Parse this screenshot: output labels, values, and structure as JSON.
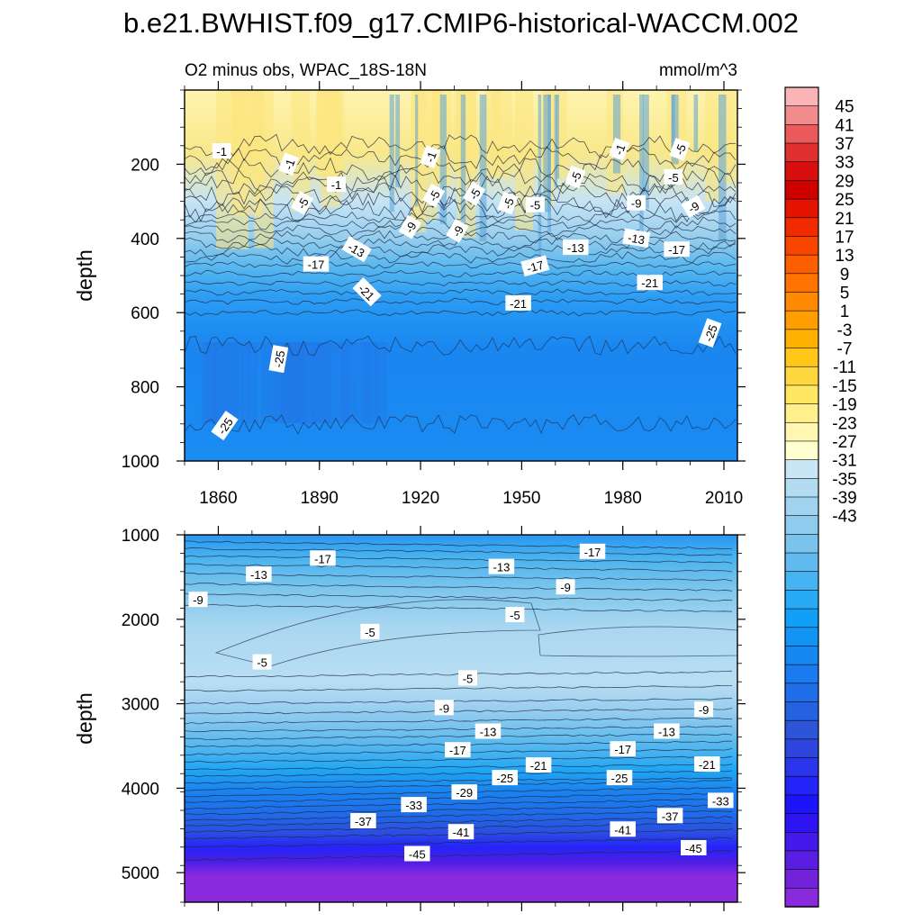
{
  "chart_data": [
    {
      "type": "heatmap",
      "title": "b.e21.BWHIST.f09_g17.CMIP6-historical-WACCM.002",
      "subtitle": "O2 minus obs, WPAC_18S-18N",
      "units_label": "mmol/m^3",
      "ylabel": "depth",
      "x_range": [
        1850,
        2014
      ],
      "ylim": [
        1000,
        0
      ],
      "x_ticks": [
        1860,
        1890,
        1920,
        1950,
        1980,
        2010
      ],
      "y_ticks": [
        200,
        400,
        600,
        800,
        1000
      ],
      "contour_labels": [
        {
          "value": "-1",
          "x": 1861,
          "y": 165,
          "rot": 0
        },
        {
          "value": "-1",
          "x": 1881,
          "y": 200,
          "rot": -70
        },
        {
          "value": "-1",
          "x": 1895,
          "y": 255,
          "rot": 0
        },
        {
          "value": "-1",
          "x": 1923,
          "y": 180,
          "rot": -70
        },
        {
          "value": "-1",
          "x": 1979,
          "y": 160,
          "rot": -70
        },
        {
          "value": "-5",
          "x": 1997,
          "y": 160,
          "rot": -70
        },
        {
          "value": "-5",
          "x": 1885,
          "y": 305,
          "rot": -60
        },
        {
          "value": "-5",
          "x": 1924,
          "y": 285,
          "rot": -60
        },
        {
          "value": "-5",
          "x": 1936,
          "y": 280,
          "rot": -60
        },
        {
          "value": "-5",
          "x": 1946,
          "y": 305,
          "rot": -70
        },
        {
          "value": "-5",
          "x": 1954,
          "y": 310,
          "rot": 0
        },
        {
          "value": "-5",
          "x": 1966,
          "y": 235,
          "rot": -70
        },
        {
          "value": "-5",
          "x": 1995,
          "y": 235,
          "rot": 0
        },
        {
          "value": "-9",
          "x": 1984,
          "y": 305,
          "rot": 0
        },
        {
          "value": "-9",
          "x": 2001,
          "y": 315,
          "rot": -30
        },
        {
          "value": "-9",
          "x": 1917,
          "y": 370,
          "rot": -60
        },
        {
          "value": "-9",
          "x": 1931,
          "y": 380,
          "rot": -60
        },
        {
          "value": "-13",
          "x": 1901,
          "y": 430,
          "rot": 30
        },
        {
          "value": "-13",
          "x": 1966,
          "y": 425,
          "rot": 0
        },
        {
          "value": "-13",
          "x": 1984,
          "y": 400,
          "rot": 10
        },
        {
          "value": "-17",
          "x": 1889,
          "y": 470,
          "rot": 0
        },
        {
          "value": "-17",
          "x": 1954,
          "y": 475,
          "rot": -15
        },
        {
          "value": "-17",
          "x": 1996,
          "y": 430,
          "rot": 0
        },
        {
          "value": "-21",
          "x": 1904,
          "y": 545,
          "rot": 45
        },
        {
          "value": "-21",
          "x": 1949,
          "y": 575,
          "rot": 0
        },
        {
          "value": "-21",
          "x": 1988,
          "y": 520,
          "rot": 0
        },
        {
          "value": "-25",
          "x": 1878,
          "y": 725,
          "rot": -80
        },
        {
          "value": "-25",
          "x": 1862,
          "y": 905,
          "rot": -55
        },
        {
          "value": "-25",
          "x": 2006,
          "y": 655,
          "rot": -70
        }
      ]
    },
    {
      "type": "heatmap",
      "ylabel": "depth",
      "x_range": [
        1850,
        2014
      ],
      "ylim": [
        5350,
        1000
      ],
      "y_ticks": [
        1000,
        2000,
        3000,
        4000,
        5000
      ],
      "contour_labels": [
        {
          "value": "-17",
          "x": 1891,
          "y": 1280,
          "rot": 0
        },
        {
          "value": "-13",
          "x": 1872,
          "y": 1470,
          "rot": 0
        },
        {
          "value": "-9",
          "x": 1854,
          "y": 1770,
          "rot": 0
        },
        {
          "value": "-17",
          "x": 1971,
          "y": 1200,
          "rot": 0
        },
        {
          "value": "-13",
          "x": 1944,
          "y": 1380,
          "rot": 0
        },
        {
          "value": "-9",
          "x": 1963,
          "y": 1620,
          "rot": 0
        },
        {
          "value": "-5",
          "x": 1948,
          "y": 1950,
          "rot": 0
        },
        {
          "value": "-5",
          "x": 1905,
          "y": 2150,
          "rot": 0
        },
        {
          "value": "-5",
          "x": 1873,
          "y": 2510,
          "rot": 0
        },
        {
          "value": "-5",
          "x": 1934,
          "y": 2700,
          "rot": 0
        },
        {
          "value": "-9",
          "x": 1927,
          "y": 3050,
          "rot": 0
        },
        {
          "value": "-9",
          "x": 2004,
          "y": 3070,
          "rot": 0
        },
        {
          "value": "-13",
          "x": 1940,
          "y": 3330,
          "rot": 0
        },
        {
          "value": "-13",
          "x": 1993,
          "y": 3330,
          "rot": 0
        },
        {
          "value": "-17",
          "x": 1931,
          "y": 3550,
          "rot": 0
        },
        {
          "value": "-17",
          "x": 1980,
          "y": 3540,
          "rot": 0
        },
        {
          "value": "-21",
          "x": 1955,
          "y": 3730,
          "rot": 0
        },
        {
          "value": "-21",
          "x": 2005,
          "y": 3720,
          "rot": 0
        },
        {
          "value": "-25",
          "x": 1945,
          "y": 3880,
          "rot": 0
        },
        {
          "value": "-25",
          "x": 1979,
          "y": 3880,
          "rot": 0
        },
        {
          "value": "-29",
          "x": 1933,
          "y": 4050,
          "rot": 0
        },
        {
          "value": "-33",
          "x": 1918,
          "y": 4200,
          "rot": 0
        },
        {
          "value": "-33",
          "x": 2009,
          "y": 4150,
          "rot": 0
        },
        {
          "value": "-37",
          "x": 1903,
          "y": 4390,
          "rot": 0
        },
        {
          "value": "-37",
          "x": 1994,
          "y": 4330,
          "rot": 0
        },
        {
          "value": "-41",
          "x": 1932,
          "y": 4520,
          "rot": 0
        },
        {
          "value": "-41",
          "x": 1980,
          "y": 4490,
          "rot": 0
        },
        {
          "value": "-45",
          "x": 1919,
          "y": 4780,
          "rot": 0
        },
        {
          "value": "-45",
          "x": 2001,
          "y": 4710,
          "rot": 0
        }
      ]
    }
  ],
  "colorbar": {
    "labels": [
      "45",
      "41",
      "37",
      "33",
      "29",
      "25",
      "21",
      "17",
      "13",
      "9",
      "5",
      "1",
      "-3",
      "-7",
      "-11",
      "-15",
      "-19",
      "-23",
      "-27",
      "-31",
      "-35",
      "-39",
      "-43"
    ],
    "colors": [
      "#f9b5b5",
      "#f28b8b",
      "#ea5a5a",
      "#e03030",
      "#d70f0f",
      "#ce0000",
      "#e41400",
      "#f12a00",
      "#fa4500",
      "#fd5f00",
      "#ff7400",
      "#ff8900",
      "#ff9e00",
      "#ffb100",
      "#ffc819",
      "#ffd83f",
      "#ffe764",
      "#fff08c",
      "#fff7b1",
      "#ffffd0",
      "#c8e6f6",
      "#b3dcf3",
      "#a1d3f0",
      "#8ecbee",
      "#79c3ed",
      "#62bbef",
      "#46b3f2",
      "#28abf4",
      "#10a0f5",
      "#1294f4",
      "#1688f2",
      "#1a7bef",
      "#1e6fe9",
      "#2562e2",
      "#2c55d8",
      "#2e46de",
      "#2a35ec",
      "#2424f8",
      "#1d15fa",
      "#2f14f2",
      "#4419ea",
      "#5a1de2",
      "#7223d9",
      "#8a2add"
    ]
  }
}
